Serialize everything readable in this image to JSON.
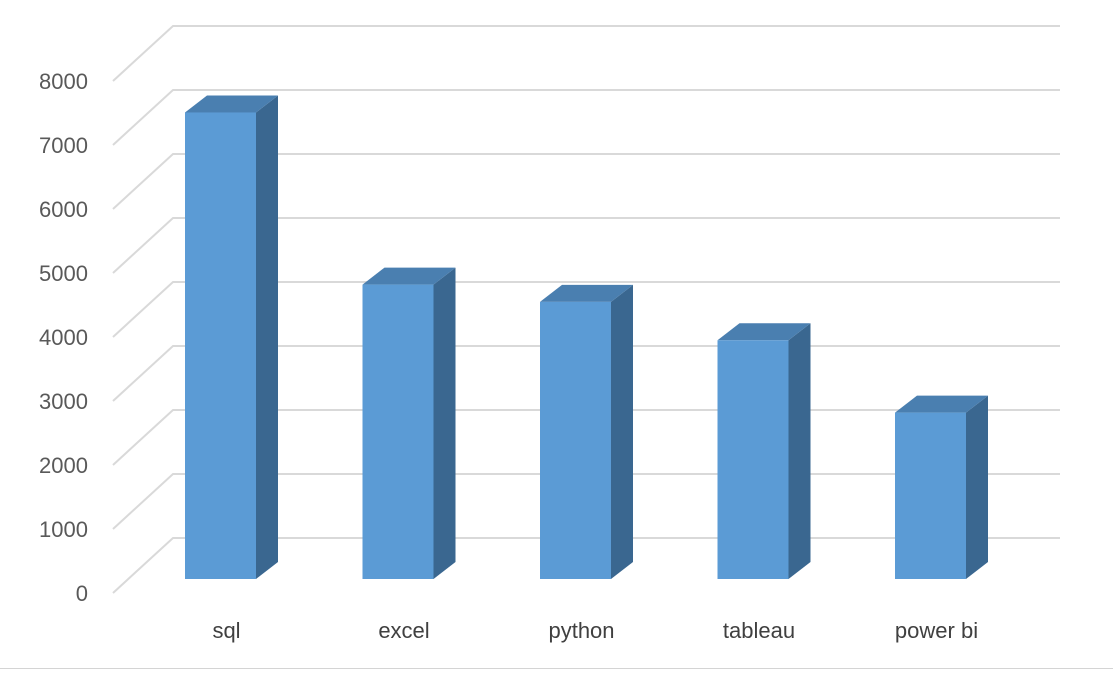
{
  "chart_data": {
    "type": "bar",
    "style": "3d-column",
    "title": "",
    "xlabel": "",
    "ylabel": "",
    "categories": [
      "sql",
      "excel",
      "python",
      "tableau",
      "power bi"
    ],
    "values": [
      7290,
      4600,
      4330,
      3730,
      2600
    ],
    "ylim": [
      0,
      8000
    ],
    "yticks": [
      0,
      1000,
      2000,
      3000,
      4000,
      5000,
      6000,
      7000,
      8000
    ],
    "grid": true,
    "legend": "none",
    "colors": {
      "bar_front": "#5b9bd5",
      "bar_side": "#3a6790",
      "bar_top": "#4a7fb0",
      "grid": "#d9d9d9"
    }
  }
}
